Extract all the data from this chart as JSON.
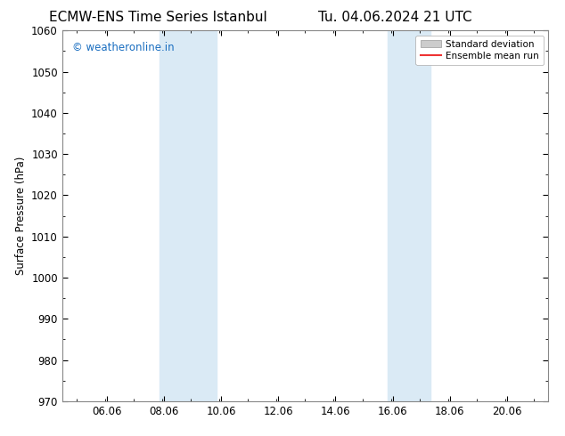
{
  "title_left": "ECMW-ENS Time Series Istanbul",
  "title_right": "Tu. 04.06.2024 21 UTC",
  "ylabel": "Surface Pressure (hPa)",
  "ylim": [
    970,
    1060
  ],
  "yticks": [
    970,
    980,
    990,
    1000,
    1010,
    1020,
    1030,
    1040,
    1050,
    1060
  ],
  "xlim": [
    4.5,
    21.5
  ],
  "xticks": [
    6.06,
    8.06,
    10.06,
    12.06,
    14.06,
    16.06,
    18.06,
    20.06
  ],
  "xticklabels": [
    "06.06",
    "08.06",
    "10.06",
    "12.06",
    "14.06",
    "16.06",
    "18.06",
    "20.06"
  ],
  "shaded_bands": [
    {
      "xmin": 7.9,
      "xmax": 9.9
    },
    {
      "xmin": 15.9,
      "xmax": 17.4
    }
  ],
  "band_color": "#daeaf5",
  "watermark": "© weatheronline.in",
  "watermark_color": "#1a6ec0",
  "legend_items": [
    {
      "label": "Standard deviation",
      "color": "#cccccc",
      "type": "patch"
    },
    {
      "label": "Ensemble mean run",
      "color": "#ee3333",
      "type": "line"
    }
  ],
  "background_color": "#ffffff",
  "title_fontsize": 11,
  "axis_fontsize": 8.5,
  "watermark_fontsize": 8.5,
  "spine_color": "#888888"
}
